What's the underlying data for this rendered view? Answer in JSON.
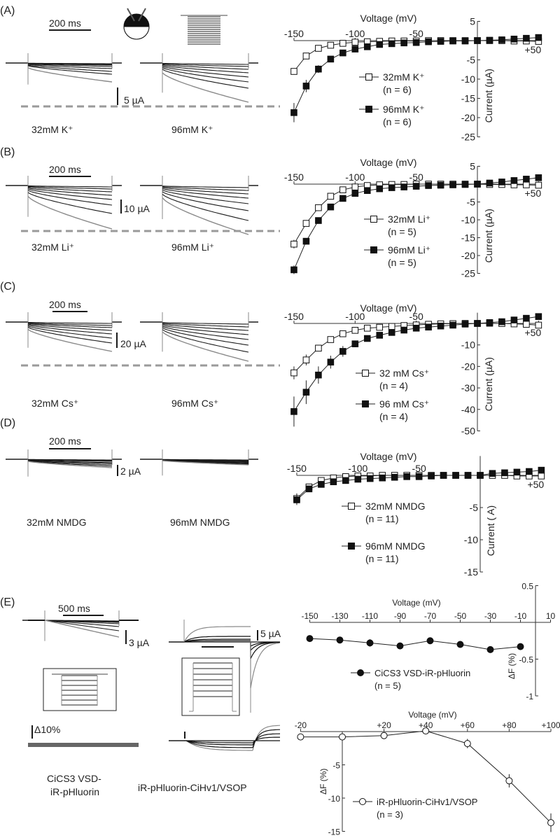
{
  "panels": [
    {
      "label": "(A)",
      "scale_time": "200 ms",
      "scale_current": "5 µA",
      "trace_labels": [
        "32mM K⁺",
        "96mM K⁺"
      ]
    },
    {
      "label": "(B)",
      "scale_time": "200 ms",
      "scale_current": "10 µA",
      "trace_labels": [
        "32mM Li⁺",
        "96mM Li⁺"
      ]
    },
    {
      "label": "(C)",
      "scale_time": "200 ms",
      "scale_current": "20 µA",
      "trace_labels": [
        "32mM Cs⁺",
        "96mM Cs⁺"
      ]
    },
    {
      "label": "(D)",
      "scale_time": "200 ms",
      "scale_current": "2 µA",
      "trace_labels": [
        "32mM NMDG",
        "96mM NMDG"
      ]
    },
    {
      "label": "(E)",
      "scale_time": "500 ms",
      "scale_current": "3 µA",
      "scale_current_2": "5 µA",
      "scale_fluor": "Δ10%",
      "trace_labels": [
        "CiCS3 VSD-",
        "iR-pHluorin",
        "iR-pHluorin-CiHv1/VSOP"
      ]
    }
  ],
  "colors": {
    "trace": "#1a1a1a",
    "trace_gray": "#8a8a8a",
    "dashed": "#9a9a9a",
    "axis": "#333333"
  },
  "chart_data": [
    {
      "type": "line",
      "xlabel": "Voltage (mV)",
      "ylabel": "Current (µA)",
      "xlim": [
        -150,
        50
      ],
      "ylim": [
        -25,
        5
      ],
      "xtick_labels": [
        "-150",
        "-100",
        "-50",
        "+50"
      ],
      "yticks": [
        5,
        -5,
        -10,
        -15,
        -20,
        -25
      ],
      "x": [
        -150,
        -140,
        -130,
        -120,
        -110,
        -100,
        -90,
        -80,
        -70,
        -60,
        -50,
        -40,
        -30,
        -20,
        -10,
        0,
        10,
        20,
        30,
        40,
        50
      ],
      "series": [
        {
          "name": "32mM K⁺",
          "n_label": "(n = 6)",
          "marker": "open-square",
          "values": [
            -8,
            -4,
            -2,
            -1.2,
            -0.7,
            -0.4,
            -0.3,
            -0.2,
            -0.1,
            -0.1,
            -0.1,
            0,
            0,
            0,
            0,
            0,
            0,
            0,
            -0.1,
            -0.1,
            -0.2
          ],
          "error": [
            0.8,
            0.4,
            0,
            0,
            0,
            0,
            0,
            0,
            0,
            0,
            0,
            0,
            0,
            0,
            0,
            0,
            0,
            0,
            0,
            0,
            0
          ]
        },
        {
          "name": "96mM K⁺",
          "n_label": "(n = 6)",
          "marker": "filled-square",
          "values": [
            -18.7,
            -11.8,
            -7.4,
            -4.8,
            -3.2,
            -2.2,
            -1.6,
            -1.0,
            -0.8,
            -0.6,
            -0.5,
            -0.3,
            -0.2,
            -0.1,
            -0.1,
            0,
            0.1,
            0.2,
            0.4,
            0.6,
            0.8
          ],
          "error": [
            2.5,
            1.6,
            1.0,
            0.5,
            0,
            0,
            0,
            0,
            0,
            0,
            0,
            0,
            0,
            0,
            0,
            0,
            0,
            0,
            0,
            0,
            0
          ]
        }
      ]
    },
    {
      "type": "line",
      "xlabel": "Voltage (mV)",
      "ylabel": "Current (µA)",
      "xlim": [
        -150,
        50
      ],
      "ylim": [
        -25,
        5
      ],
      "xtick_labels": [
        "-150",
        "-100",
        "-50",
        "+50"
      ],
      "yticks": [
        5,
        -5,
        -10,
        -15,
        -20,
        -25
      ],
      "x": [
        -150,
        -140,
        -130,
        -120,
        -110,
        -100,
        -90,
        -80,
        -70,
        -60,
        -50,
        -40,
        -30,
        -20,
        -10,
        0,
        10,
        20,
        30,
        40,
        50
      ],
      "series": [
        {
          "name": "32mM Li⁺",
          "n_label": "(n = 5)",
          "marker": "open-square",
          "values": [
            -16.8,
            -11,
            -6.6,
            -3.4,
            -1.6,
            -0.8,
            -0.4,
            -0.2,
            -0.1,
            -0.1,
            0,
            0,
            0,
            0,
            0,
            0,
            -0.1,
            -0.1,
            -0.2,
            -0.2,
            -0.3
          ],
          "error": [
            1.2,
            0.6,
            0,
            0,
            0,
            0,
            0,
            0,
            0,
            0,
            0,
            0,
            0,
            0,
            0,
            0,
            0,
            0,
            0,
            0,
            0
          ]
        },
        {
          "name": "96mM Li⁺",
          "n_label": "(n = 5)",
          "marker": "filled-square",
          "values": [
            -24,
            -16,
            -10.2,
            -6.4,
            -4,
            -2.6,
            -1.8,
            -1.3,
            -1,
            -0.8,
            -0.6,
            -0.4,
            -0.3,
            -0.2,
            -0.1,
            0,
            0.3,
            0.6,
            1.0,
            1.4,
            1.8
          ],
          "error": [
            1.2,
            0,
            0,
            0,
            0,
            0,
            0,
            0,
            0,
            0,
            0,
            0,
            0,
            0,
            0,
            0,
            0,
            0,
            0,
            0,
            0
          ]
        }
      ]
    },
    {
      "type": "line",
      "xlabel": "Voltage (mV)",
      "ylabel": "Current (µA)",
      "xlim": [
        -150,
        50
      ],
      "ylim": [
        -50,
        5
      ],
      "xtick_labels": [
        "-150",
        "-100",
        "-50",
        "+50"
      ],
      "yticks": [
        -10,
        -20,
        -30,
        -40,
        -50
      ],
      "x": [
        -150,
        -140,
        -130,
        -120,
        -110,
        -100,
        -90,
        -80,
        -70,
        -60,
        -50,
        -40,
        -30,
        -20,
        -10,
        0,
        10,
        20,
        30,
        40,
        50
      ],
      "series": [
        {
          "name": "32 mM Cs⁺",
          "n_label": "(n = 4)",
          "marker": "open-square",
          "values": [
            -23,
            -17,
            -11.5,
            -7.5,
            -4.8,
            -3.2,
            -2.2,
            -1.8,
            -1.4,
            -1.0,
            -0.7,
            -0.4,
            -0.2,
            -0.1,
            0,
            0,
            0.1,
            0,
            -0.2,
            -0.4,
            -0.8
          ],
          "error": [
            3,
            2.5,
            1.5,
            0,
            0,
            0,
            0,
            0,
            0,
            0,
            0,
            0,
            0,
            0,
            0,
            0,
            0,
            0,
            0,
            0,
            0
          ]
        },
        {
          "name": "96 mM Cs⁺",
          "n_label": "(n = 4)",
          "marker": "filled-square",
          "values": [
            -41,
            -32,
            -24,
            -18,
            -13,
            -9.5,
            -7,
            -5.5,
            -4.2,
            -3.1,
            -2.2,
            -1.7,
            -1.2,
            -0.8,
            -0.3,
            0,
            0.4,
            0.8,
            1.6,
            2.4,
            3.2
          ],
          "error": [
            7,
            5.5,
            4,
            3,
            2.5,
            1.5,
            1,
            0,
            0,
            0,
            0,
            0,
            0,
            0,
            0,
            0,
            0,
            0,
            0,
            0,
            0
          ]
        }
      ]
    },
    {
      "type": "line",
      "xlabel": "Voltage (mV)",
      "ylabel": "Current (  A)",
      "xlim": [
        -150,
        50
      ],
      "ylim": [
        -15,
        3
      ],
      "xtick_labels": [
        "-150",
        "-100",
        "-50",
        "+50"
      ],
      "yticks": [
        -5,
        -10,
        -15
      ],
      "x": [
        -150,
        -140,
        -130,
        -120,
        -110,
        -100,
        -90,
        -80,
        -70,
        -60,
        -50,
        -40,
        -30,
        -20,
        -10,
        0,
        10,
        20,
        30,
        40,
        50
      ],
      "series": [
        {
          "name": "32mM NMDG",
          "n_label": "(n = 11)",
          "marker": "open-square",
          "values": [
            -3.6,
            -1.8,
            -0.8,
            -0.4,
            -0.2,
            -0.1,
            -0.1,
            0,
            0,
            0,
            0,
            0,
            0,
            0,
            0,
            0,
            0,
            0,
            -0.1,
            -0.1,
            -0.1
          ],
          "error": [
            0.8,
            0.3,
            0,
            0,
            0,
            0,
            0,
            0,
            0,
            0,
            0,
            0,
            0,
            0,
            0,
            0,
            0,
            0,
            0,
            0,
            0
          ]
        },
        {
          "name": "96mM NMDG",
          "n_label": "(n = 11)",
          "marker": "filled-square",
          "values": [
            -3.8,
            -2.1,
            -1.4,
            -1.0,
            -0.8,
            -0.6,
            -0.5,
            -0.4,
            -0.3,
            -0.2,
            -0.2,
            -0.1,
            0,
            0,
            0,
            0,
            0.3,
            0.4,
            0.5,
            0.6,
            0.8
          ],
          "error": [
            0.8,
            0.3,
            0,
            0,
            0,
            0,
            0,
            0,
            0,
            0,
            0,
            0,
            0,
            0,
            0,
            0,
            0,
            0,
            0,
            0,
            0
          ]
        }
      ]
    },
    {
      "type": "line",
      "xlabel": "Voltage (mV)",
      "ylabel": "ΔF (%)",
      "xlim": [
        -150,
        10
      ],
      "ylim": [
        -1.0,
        0.5
      ],
      "xtick_labels": [
        "-150",
        "-130",
        "-110",
        "-90",
        "-70",
        "-50",
        "-30",
        "-10",
        "10"
      ],
      "yticks": [
        0.5,
        -0.5,
        -1.0
      ],
      "x": [
        -150,
        -130,
        -110,
        -90,
        -70,
        -50,
        -30,
        -10
      ],
      "series": [
        {
          "name": "CiCS3 VSD-iR-pHluorin",
          "n_label": "(n = 5)",
          "marker": "filled-circle",
          "values": [
            -0.22,
            -0.24,
            -0.28,
            -0.32,
            -0.25,
            -0.3,
            -0.37,
            -0.33
          ],
          "error": [
            0,
            0,
            0.05,
            0,
            0,
            0,
            0,
            0.04
          ]
        }
      ]
    },
    {
      "type": "line",
      "xlabel": "Voltage (mV)",
      "ylabel": "ΔF (%)",
      "xlim": [
        -20,
        100
      ],
      "ylim": [
        -15,
        0
      ],
      "xtick_labels": [
        "-20",
        "+20",
        "+40",
        "+60",
        "+80",
        "+100"
      ],
      "yticks": [
        -5,
        -10,
        -15
      ],
      "x": [
        -20,
        0,
        20,
        40,
        60,
        80,
        100
      ],
      "series": [
        {
          "name": "iR-pHluorin-CiHv1/VSOP",
          "n_label": "(n = 3)",
          "marker": "open-circle",
          "values": [
            -0.8,
            -0.8,
            -0.6,
            0.1,
            -1.8,
            -7.4,
            -13.7
          ],
          "error": [
            0,
            0,
            0,
            0,
            0.7,
            1.0,
            1.4
          ]
        }
      ]
    }
  ]
}
